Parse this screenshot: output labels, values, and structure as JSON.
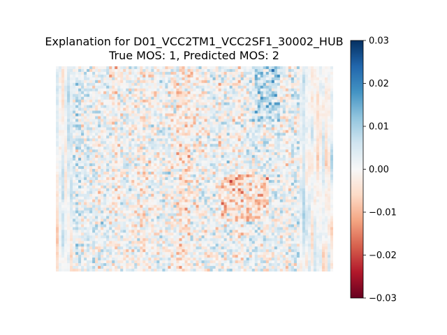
{
  "chart_data": {
    "type": "heatmap",
    "title": "Explanation for D01_VCC2TM1_VCC2SF1_30002_HUB",
    "subtitle": "True MOS: 1, Predicted MOS: 2",
    "xlabel": "",
    "ylabel": "",
    "axes_visible": false,
    "colormap": "RdBu",
    "colorbar": {
      "range": [
        -0.03,
        0.03
      ],
      "ticks": [
        0.03,
        0.02,
        0.01,
        0.0,
        -0.01,
        -0.02,
        -0.03
      ],
      "tick_labels": [
        "0.03",
        "0.02",
        "0.01",
        "0.00",
        "−0.01",
        "−0.02",
        "−0.03"
      ],
      "placement": "right"
    }
  }
}
